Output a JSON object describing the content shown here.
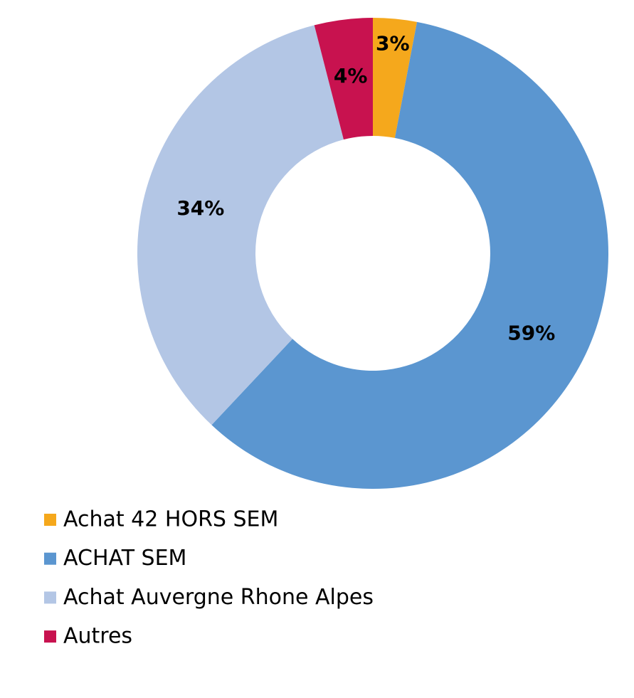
{
  "chart_data": {
    "type": "donut",
    "categories": [
      "Achat 42 HORS SEM",
      "ACHAT SEM",
      "Achat Auvergne Rhone Alpes",
      "Autres"
    ],
    "values": [
      3,
      59,
      34,
      4
    ],
    "value_labels": [
      "3%",
      "59%",
      "34%",
      "4%"
    ],
    "colors": [
      "#f5a81c",
      "#5b96d0",
      "#b3c6e5",
      "#c8124f"
    ],
    "legend": "bottom-left"
  }
}
